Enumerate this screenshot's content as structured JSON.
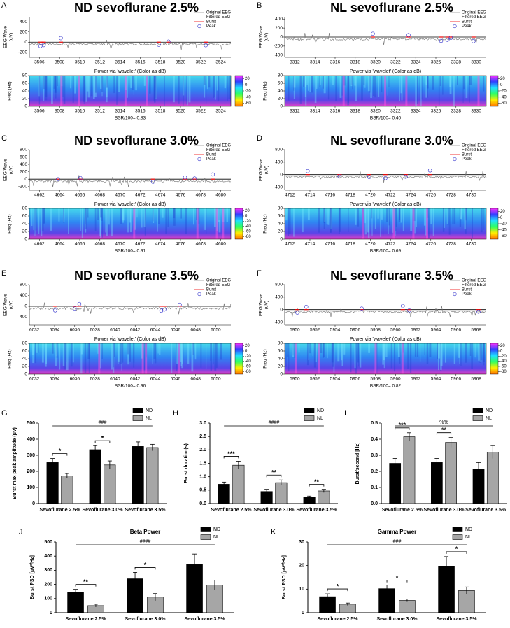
{
  "chart_data": [
    {
      "type": "eeg",
      "panel": "A",
      "title": "ND sevoflurane 2.5%",
      "legend": [
        "Original EEG",
        "Filtered EEG",
        "Burst",
        "Peak"
      ],
      "ylabel": [
        "EEG Wave",
        "(uV)"
      ],
      "xlim": [
        3505,
        3525
      ],
      "xticks": [
        3506,
        3508,
        3510,
        3512,
        3514,
        3516,
        3518,
        3520,
        3522,
        3524
      ],
      "ylim": [
        -300,
        500
      ],
      "yticks": [
        -200,
        0,
        200,
        400
      ],
      "spectrogram_title": "Power via 'wavelet' (Color as dB)",
      "freq_label": "Freq (Hz)",
      "freq_lim": [
        0,
        80
      ],
      "freq_ticks": [
        0,
        20,
        40,
        60,
        80
      ],
      "colorbar_lim": [
        -70,
        30
      ],
      "colorbar_ticks": [
        -60,
        -40,
        -20,
        0,
        20
      ],
      "colormap": [
        "#ff30ff",
        "#3040ff",
        "#20e0ff",
        "#30ff60",
        "#ffee00",
        "#ff7000"
      ],
      "footer": "BSR/100= 0.83"
    },
    {
      "type": "eeg",
      "panel": "B",
      "title": "NL sevoflurane 2.5%",
      "legend": [
        "Original EEG",
        "Filtered EEG",
        "Burst",
        "Peak"
      ],
      "ylabel": [
        "EEG Wave",
        "(uV)"
      ],
      "xlim": [
        3311,
        3331
      ],
      "xticks": [
        3312,
        3314,
        3316,
        3318,
        3320,
        3322,
        3324,
        3326,
        3328,
        3330
      ],
      "ylim": [
        -450,
        450
      ],
      "yticks": [
        -400,
        -200,
        0,
        200,
        400
      ],
      "spectrogram_title": "Power via 'wavelet' (Color as dB)",
      "freq_label": "Freq (Hz)",
      "freq_lim": [
        0,
        80
      ],
      "freq_ticks": [
        0,
        20,
        40,
        60,
        80
      ],
      "colorbar_lim": [
        -70,
        30
      ],
      "colorbar_ticks": [
        -60,
        -40,
        -20,
        0,
        20
      ],
      "colormap": [
        "#ff30ff",
        "#3040ff",
        "#20e0ff",
        "#30ff60",
        "#ffee00",
        "#ff7000"
      ],
      "footer": "BSR/100= 0.40"
    },
    {
      "type": "eeg",
      "panel": "C",
      "title": "ND sevoflurane 3.0%",
      "legend": [
        "Original EEG",
        "Filtered EEG",
        "Burst",
        "Peak"
      ],
      "ylabel": [
        "EEG Wave",
        "(uV)"
      ],
      "xlim": [
        4661,
        4681
      ],
      "xticks": [
        4662,
        4664,
        4666,
        4668,
        4670,
        4672,
        4674,
        4676,
        4678,
        4680
      ],
      "ylim": [
        -300,
        800
      ],
      "yticks": [
        -200,
        0,
        200,
        400,
        600,
        800
      ],
      "spectrogram_title": "Power via 'wavelet' (Color as dB)",
      "freq_label": "Freq (Hz)",
      "freq_lim": [
        0,
        80
      ],
      "freq_ticks": [
        0,
        20,
        40,
        60,
        80
      ],
      "colorbar_lim": [
        -90,
        30
      ],
      "colorbar_ticks": [
        -80,
        -60,
        -40,
        -20,
        0,
        20
      ],
      "colormap": [
        "#ff30ff",
        "#3040ff",
        "#20e0ff",
        "#30ff60",
        "#ffee00",
        "#ff7000"
      ],
      "footer": "BSR/100= 0.91"
    },
    {
      "type": "eeg",
      "panel": "D",
      "title": "NL sevoflurane 3.0%",
      "legend": [
        "Original EEG",
        "Filtered EEG",
        "Burst",
        "Peak"
      ],
      "ylabel": [
        "EEG Wave",
        "(uV)"
      ],
      "xlim": [
        4711.5,
        4731.5
      ],
      "xticks": [
        4712,
        4714,
        4716,
        4718,
        4720,
        4722,
        4724,
        4726,
        4728,
        4730
      ],
      "ylim": [
        -500,
        800
      ],
      "yticks": [
        -400,
        0,
        400,
        800
      ],
      "spectrogram_title": "Power via 'wavelet' (Color as dB)",
      "freq_label": "Freq (Hz)",
      "freq_lim": [
        0,
        80
      ],
      "freq_ticks": [
        0,
        20,
        40,
        60,
        80
      ],
      "colorbar_lim": [
        -70,
        30
      ],
      "colorbar_ticks": [
        -60,
        -40,
        -20,
        0,
        20
      ],
      "colormap": [
        "#ff30ff",
        "#3040ff",
        "#20e0ff",
        "#30ff60",
        "#ffee00",
        "#ff7000"
      ],
      "footer": "BSR/100= 0.69"
    },
    {
      "type": "eeg",
      "panel": "E",
      "title": "ND sevoflurane 3.5%",
      "legend": [
        "Original EEG",
        "Filtered EEG",
        "Burst",
        "Peak"
      ],
      "ylabel": [
        "EEG Wave",
        "(uV)"
      ],
      "xlim": [
        6031.5,
        6051.5
      ],
      "xticks": [
        6032,
        6034,
        6036,
        6038,
        6040,
        6042,
        6044,
        6046,
        6048,
        6050
      ],
      "ylim": [
        -700,
        800
      ],
      "yticks": [
        -400,
        0,
        400,
        800
      ],
      "spectrogram_title": "Power via 'wavelet' (Color as dB)",
      "freq_label": "Freq (Hz)",
      "freq_lim": [
        0,
        80
      ],
      "freq_ticks": [
        0,
        20,
        40,
        60,
        80
      ],
      "colorbar_lim": [
        -90,
        30
      ],
      "colorbar_ticks": [
        -80,
        -60,
        -40,
        -20,
        0,
        20
      ],
      "colormap": [
        "#ff30ff",
        "#3040ff",
        "#20e0ff",
        "#30ff60",
        "#ffee00",
        "#ff7000"
      ],
      "footer": "BSR/100= 0.96"
    },
    {
      "type": "eeg",
      "panel": "F",
      "title": "NL sevoflurane 3.5%",
      "legend": [
        "Original EEG",
        "Filtered EEG",
        "Burst",
        "Peak"
      ],
      "ylabel": [
        "EEG Wave",
        "(uV)"
      ],
      "xlim": [
        5949,
        5969
      ],
      "xticks": [
        5950,
        5952,
        5954,
        5956,
        5958,
        5960,
        5962,
        5964,
        5966,
        5968
      ],
      "ylim": [
        -500,
        800
      ],
      "yticks": [
        -400,
        0,
        400,
        800
      ],
      "spectrogram_title": "Power via 'wavelet' (Color as dB)",
      "freq_label": "Freq (Hz)",
      "freq_lim": [
        0,
        80
      ],
      "freq_ticks": [
        0,
        20,
        40,
        60,
        80
      ],
      "colorbar_lim": [
        -90,
        30
      ],
      "colorbar_ticks": [
        -80,
        -60,
        -40,
        -20,
        0,
        20
      ],
      "colormap": [
        "#ff30ff",
        "#3040ff",
        "#20e0ff",
        "#30ff60",
        "#ffee00",
        "#ff7000"
      ],
      "footer": "BSR/100= 0.82"
    },
    {
      "type": "bar",
      "panel": "G",
      "ylabel": "Burst max peak amplitude (μV)",
      "categories": [
        "Sevoflurane 2.5%",
        "Sevoflurane 3.0%",
        "Sevoflurane 3.5%"
      ],
      "series": [
        {
          "name": "ND",
          "color": "#000000",
          "values": [
            255,
            335,
            355
          ],
          "errors": [
            25,
            25,
            28
          ]
        },
        {
          "name": "NL",
          "color": "#a6a6a6",
          "values": [
            172,
            240,
            348
          ],
          "errors": [
            15,
            25,
            20
          ]
        }
      ],
      "ylim": [
        0,
        500
      ],
      "yticks": [
        0,
        100,
        200,
        300,
        400,
        500
      ],
      "significance": [
        "*",
        "*",
        null
      ],
      "overall": "###"
    },
    {
      "type": "bar",
      "panel": "H",
      "ylabel": "Burst duration(s)",
      "categories": [
        "Sevoflurane 2.5%",
        "Sevoflurane 3.0%",
        "Sevoflurane 3.5%"
      ],
      "series": [
        {
          "name": "ND",
          "color": "#000000",
          "values": [
            0.72,
            0.45,
            0.25
          ],
          "errors": [
            0.08,
            0.08,
            0.03
          ]
        },
        {
          "name": "NL",
          "color": "#a6a6a6",
          "values": [
            1.43,
            0.78,
            0.47
          ],
          "errors": [
            0.15,
            0.1,
            0.06
          ]
        }
      ],
      "ylim": [
        0,
        3
      ],
      "yticks": [
        {
          "value": 0,
          "label": "0.0"
        },
        0.5,
        {
          "value": 1,
          "label": "1.0"
        },
        1.5,
        {
          "value": 2,
          "label": "2.0"
        },
        2.5,
        {
          "value": 3,
          "label": "3.0"
        }
      ],
      "significance": [
        "***",
        "**",
        "**"
      ],
      "overall": "####"
    },
    {
      "type": "bar",
      "panel": "I",
      "ylabel": "Burst/second [Hz]",
      "categories": [
        "Sevoflurane 2.5%",
        "Sevoflurane 3.0%",
        "Sevoflurane 3.5%"
      ],
      "series": [
        {
          "name": "ND",
          "color": "#000000",
          "values": [
            0.25,
            0.255,
            0.215
          ],
          "errors": [
            0.03,
            0.025,
            0.04
          ]
        },
        {
          "name": "NL",
          "color": "#a6a6a6",
          "values": [
            0.415,
            0.38,
            0.32
          ],
          "errors": [
            0.025,
            0.03,
            0.04
          ]
        }
      ],
      "ylim": [
        0,
        0.5
      ],
      "yticks": [
        {
          "value": 0,
          "label": "0.0"
        },
        0.1,
        0.2,
        0.3,
        0.4,
        0.5
      ],
      "significance": [
        "***",
        "**",
        null
      ],
      "overall": "%%"
    },
    {
      "type": "bar",
      "panel": "J",
      "title": "Beta Power",
      "ylabel": "Burst PSD [μV²/Hz]",
      "categories": [
        "Sevoflurane 2.5%",
        "Sevoflurane 3.0%",
        "Sevoflurane 3.5%"
      ],
      "series": [
        {
          "name": "ND",
          "color": "#000000",
          "values": [
            145,
            240,
            340
          ],
          "errors": [
            20,
            45,
            75
          ]
        },
        {
          "name": "NL",
          "color": "#a6a6a6",
          "values": [
            50,
            110,
            195
          ],
          "errors": [
            10,
            25,
            35
          ]
        }
      ],
      "ylim": [
        0,
        500
      ],
      "yticks": [
        0,
        100,
        200,
        300,
        400,
        500
      ],
      "significance": [
        "**",
        "*",
        null
      ],
      "overall": "####"
    },
    {
      "type": "bar",
      "panel": "K",
      "title": "Gamma Power",
      "ylabel": "Burst PSD [μV²/Hz]",
      "categories": [
        "Sevoflurane 2.5%",
        "Sevoflurane 3.0%",
        "Sevoflurane 3.5%"
      ],
      "series": [
        {
          "name": "ND",
          "color": "#000000",
          "values": [
            6.8,
            10.2,
            19.8
          ],
          "errors": [
            1.2,
            1.5,
            4
          ]
        },
        {
          "name": "NL",
          "color": "#a6a6a6",
          "values": [
            3.6,
            5.2,
            9.4
          ],
          "errors": [
            0.5,
            0.6,
            1.5
          ]
        }
      ],
      "ylim": [
        0,
        30
      ],
      "yticks": [
        0,
        10,
        20,
        30
      ],
      "significance": [
        "*",
        "*",
        "*"
      ],
      "overall": "###"
    }
  ]
}
